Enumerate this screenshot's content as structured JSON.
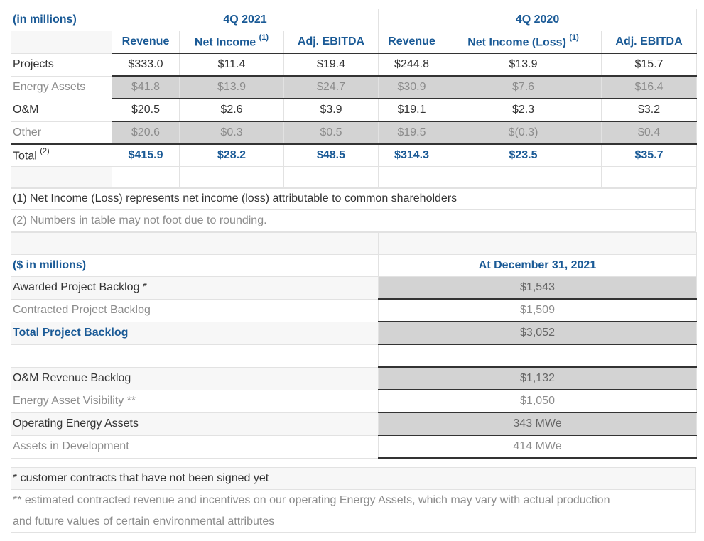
{
  "segments": {
    "units_label": "(in millions)",
    "period_2021": "4Q 2021",
    "period_2020": "4Q 2020",
    "columns": [
      "Revenue",
      "Net Income",
      "Adj. EBITDA",
      "Revenue",
      "Net Income (Loss)",
      "Adj. EBITDA"
    ],
    "column_sups": [
      "",
      "(1)",
      "",
      "",
      "(1)",
      ""
    ],
    "rows": [
      {
        "label": "Projects",
        "values": [
          "$333.0",
          "$11.4",
          "$19.4",
          "$244.8",
          "$13.9",
          "$15.7"
        ]
      },
      {
        "label": "Energy Assets",
        "values": [
          "$41.8",
          "$13.9",
          "$24.7",
          "$30.9",
          "$7.6",
          "$16.4"
        ]
      },
      {
        "label": "O&M",
        "values": [
          "$20.5",
          "$2.6",
          "$3.9",
          "$19.1",
          "$2.3",
          "$3.2"
        ]
      },
      {
        "label": "Other",
        "values": [
          "$20.6",
          "$0.3",
          "$0.5",
          "$19.5",
          "$(0.3)",
          "$0.4"
        ]
      }
    ],
    "total": {
      "label": "Total",
      "sup": "(2)",
      "values": [
        "$415.9",
        "$28.2",
        "$48.5",
        "$314.3",
        "$23.5",
        "$35.7"
      ]
    },
    "footnotes": [
      "(1) Net Income (Loss) represents net income (loss) attributable to common shareholders",
      "(2) Numbers in table may not foot due to rounding."
    ]
  },
  "backlog": {
    "units_label": "($ in millions)",
    "date_header": "At December 31, 2021",
    "rows": [
      {
        "label": "Awarded Project Backlog *",
        "value": "$1,543"
      },
      {
        "label": "Contracted Project Backlog",
        "value": "$1,509"
      },
      {
        "label": "Total Project Backlog",
        "value": "$3,052"
      }
    ],
    "rows2": [
      {
        "label": "O&M Revenue Backlog",
        "value": "$1,132"
      },
      {
        "label": "Energy Asset Visibility **",
        "value": "$1,050"
      },
      {
        "label": "Operating Energy Assets",
        "value": "343 MWe"
      },
      {
        "label": "Assets in Development",
        "value": "414 MWe"
      }
    ],
    "footnotes": [
      "* customer contracts that have not been signed yet",
      "** estimated contracted revenue and incentives on our operating Energy Assets, which may vary with actual production",
      "and future values of certain environmental attributes"
    ]
  }
}
